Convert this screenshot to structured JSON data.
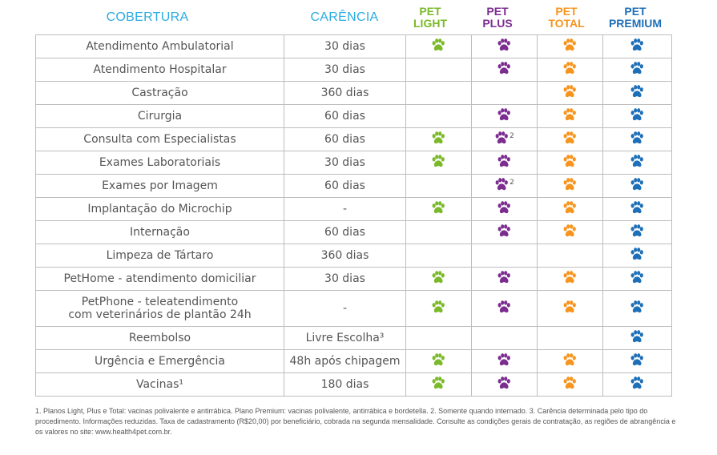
{
  "header": {
    "coverage": "COBERTURA",
    "waiting": "CARÊNCIA",
    "plans": [
      {
        "top": "PET",
        "bottom": "LIGHT",
        "color": "#7ab929"
      },
      {
        "top": "PET",
        "bottom": "PLUS",
        "color": "#7b2d90"
      },
      {
        "top": "PET",
        "bottom": "TOTAL",
        "color": "#f7941d"
      },
      {
        "top": "PET",
        "bottom": "PREMIUM",
        "color": "#1d6fb8"
      }
    ]
  },
  "rows": [
    {
      "name": "Atendimento Ambulatorial",
      "wait": "30 dias",
      "plans": [
        true,
        true,
        true,
        true
      ],
      "notes": [
        "",
        "",
        "",
        ""
      ]
    },
    {
      "name": "Atendimento Hospitalar",
      "wait": "30 dias",
      "plans": [
        false,
        true,
        true,
        true
      ],
      "notes": [
        "",
        "",
        "",
        ""
      ]
    },
    {
      "name": "Castração",
      "wait": "360 dias",
      "plans": [
        false,
        false,
        true,
        true
      ],
      "notes": [
        "",
        "",
        "",
        ""
      ]
    },
    {
      "name": "Cirurgia",
      "wait": "60 dias",
      "plans": [
        false,
        true,
        true,
        true
      ],
      "notes": [
        "",
        "",
        "",
        ""
      ]
    },
    {
      "name": "Consulta com Especialistas",
      "wait": "60 dias",
      "plans": [
        true,
        true,
        true,
        true
      ],
      "notes": [
        "",
        "2",
        "",
        ""
      ]
    },
    {
      "name": "Exames Laboratoriais",
      "wait": "30 dias",
      "plans": [
        true,
        true,
        true,
        true
      ],
      "notes": [
        "",
        "",
        "",
        ""
      ]
    },
    {
      "name": "Exames por Imagem",
      "wait": "60 dias",
      "plans": [
        false,
        true,
        true,
        true
      ],
      "notes": [
        "",
        "2",
        "",
        ""
      ]
    },
    {
      "name": "Implantação do Microchip",
      "wait": "-",
      "plans": [
        true,
        true,
        true,
        true
      ],
      "notes": [
        "",
        "",
        "",
        ""
      ]
    },
    {
      "name": "Internação",
      "wait": "60 dias",
      "plans": [
        false,
        true,
        true,
        true
      ],
      "notes": [
        "",
        "",
        "",
        ""
      ]
    },
    {
      "name": "Limpeza de Tártaro",
      "wait": "360 dias",
      "plans": [
        false,
        false,
        false,
        true
      ],
      "notes": [
        "",
        "",
        "",
        ""
      ]
    },
    {
      "name": "PetHome - atendimento domiciliar",
      "wait": "30 dias",
      "plans": [
        true,
        true,
        true,
        true
      ],
      "notes": [
        "",
        "",
        "",
        ""
      ]
    },
    {
      "name": "PetPhone - teleatendimento com veterinários de plantão 24h",
      "wait": "-",
      "plans": [
        true,
        true,
        true,
        true
      ],
      "notes": [
        "",
        "",
        "",
        ""
      ]
    },
    {
      "name": "Reembolso",
      "wait": "Livre Escolha³",
      "plans": [
        false,
        false,
        false,
        true
      ],
      "notes": [
        "",
        "",
        "",
        ""
      ]
    },
    {
      "name": "Urgência e Emergência",
      "wait": "48h após chipagem",
      "plans": [
        true,
        true,
        true,
        true
      ],
      "notes": [
        "",
        "",
        "",
        ""
      ]
    },
    {
      "name": "Vacinas¹",
      "wait": "180 dias",
      "plans": [
        true,
        true,
        true,
        true
      ],
      "notes": [
        "",
        "",
        "",
        ""
      ]
    }
  ],
  "footnote": "1. Planos Light, Plus e Total: vacinas polivalente e antirrábica. Plano Premium: vacinas polivalente, antirrábica e bordetella. 2. Somente quando internado. 3. Carência determinada pelo tipo do procedimento. Informações reduzidas. Taxa de cadastramento (R$20,00) por beneficiário, cobrada na segunda mensalidade. Consulte as condições gerais de contratação, as regiões de abrangência e os valores no site: www.health4pet.com.br.",
  "colors": {
    "header": "#29abe2",
    "border": "#bdbdbd",
    "text": "#555555"
  }
}
